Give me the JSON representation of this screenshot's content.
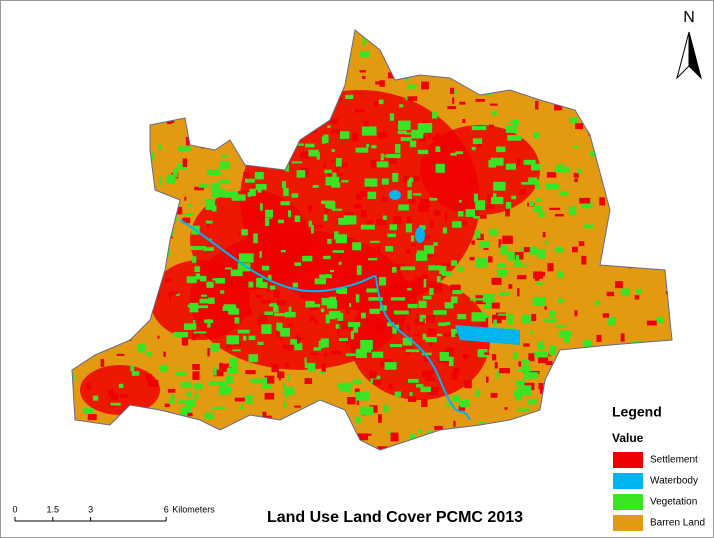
{
  "title": "Land Use Land Cover PCMC 2013",
  "north": "N",
  "legend": {
    "title": "Legend",
    "subtitle": "Value",
    "items": [
      {
        "label": "Settlement",
        "color": "#f00000"
      },
      {
        "label": "Waterbody",
        "color": "#00b4f0"
      },
      {
        "label": "Vegetation",
        "color": "#3ae324"
      },
      {
        "label": "Barren Land",
        "color": "#e29a10"
      }
    ]
  },
  "scale_bar": {
    "ticks": [
      0,
      1.5,
      3,
      6
    ],
    "unit": "Kilometers"
  }
}
